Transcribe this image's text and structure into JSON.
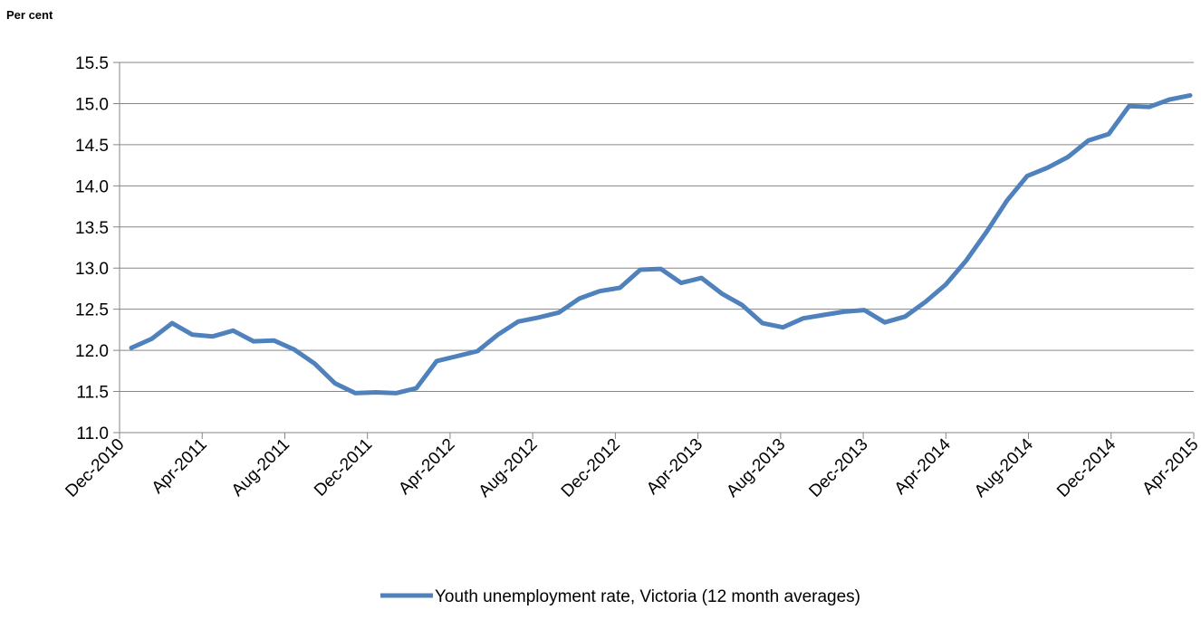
{
  "chart_data": {
    "type": "line",
    "title": "",
    "ylabel": "Per cent",
    "xlabel": "",
    "ylim": [
      11.0,
      15.5
    ],
    "y_ticks": [
      "11.0",
      "11.5",
      "12.0",
      "12.5",
      "13.0",
      "13.5",
      "14.0",
      "14.5",
      "15.0",
      "15.5"
    ],
    "x_tick_labels": [
      "Dec-2010",
      "Apr-2011",
      "Aug-2011",
      "Dec-2011",
      "Apr-2012",
      "Aug-2012",
      "Dec-2012",
      "Apr-2013",
      "Aug-2013",
      "Dec-2013",
      "Apr-2014",
      "Aug-2014",
      "Dec-2014",
      "Apr-2015"
    ],
    "grid": "horizontal",
    "legend_position": "bottom",
    "line_color": "#4F81BD",
    "series": [
      {
        "name": "Youth unemployment rate, Victoria (12 month averages)",
        "x": [
          "Dec-2010",
          "Jan-2011",
          "Feb-2011",
          "Mar-2011",
          "Apr-2011",
          "May-2011",
          "Jun-2011",
          "Jul-2011",
          "Aug-2011",
          "Sep-2011",
          "Oct-2011",
          "Nov-2011",
          "Dec-2011",
          "Jan-2012",
          "Feb-2012",
          "Mar-2012",
          "Apr-2012",
          "May-2012",
          "Jun-2012",
          "Jul-2012",
          "Aug-2012",
          "Sep-2012",
          "Oct-2012",
          "Nov-2012",
          "Dec-2012",
          "Jan-2013",
          "Feb-2013",
          "Mar-2013",
          "Apr-2013",
          "May-2013",
          "Jun-2013",
          "Jul-2013",
          "Aug-2013",
          "Sep-2013",
          "Oct-2013",
          "Nov-2013",
          "Dec-2013",
          "Jan-2014",
          "Feb-2014",
          "Mar-2014",
          "Apr-2014",
          "May-2014",
          "Jun-2014",
          "Jul-2014",
          "Aug-2014",
          "Sep-2014",
          "Oct-2014",
          "Nov-2014",
          "Dec-2014",
          "Jan-2015",
          "Feb-2015",
          "Mar-2015",
          "Apr-2015"
        ],
        "values": [
          12.03,
          12.14,
          12.33,
          12.19,
          12.17,
          12.24,
          12.11,
          12.12,
          12.01,
          11.84,
          11.6,
          11.48,
          11.49,
          11.48,
          11.54,
          11.87,
          11.93,
          11.99,
          12.19,
          12.35,
          12.4,
          12.46,
          12.63,
          12.72,
          12.76,
          12.98,
          12.99,
          12.82,
          12.88,
          12.69,
          12.55,
          12.33,
          12.28,
          12.39,
          12.43,
          12.47,
          12.49,
          12.34,
          12.41,
          12.59,
          12.8,
          13.09,
          13.44,
          13.82,
          14.12,
          14.22,
          14.35,
          14.55,
          14.63,
          14.97,
          14.96,
          15.05,
          15.1
        ]
      }
    ]
  }
}
